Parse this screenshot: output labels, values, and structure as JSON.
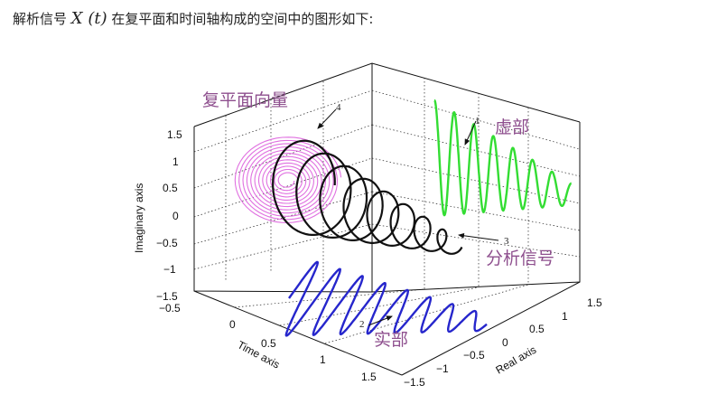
{
  "caption": {
    "prefix": "解析信号",
    "math": "X (t)",
    "suffix": "在复平面和时间轴构成的空间中的图形如下:"
  },
  "figure": {
    "axes": {
      "imag_label": "Imaginary axis",
      "time_label": "Time axis",
      "real_label": "Real axis",
      "imag_ticks": [
        "1.5",
        "1",
        "0.5",
        "0",
        "−0.5",
        "−1",
        "−1.5"
      ],
      "time_ticks": [
        "−0.5",
        "0",
        "0.5",
        "1",
        "1.5"
      ],
      "real_ticks": [
        "−1.5",
        "−1",
        "−0.5",
        "0",
        "0.5",
        "1",
        "1.5"
      ]
    },
    "annotations": {
      "phasor": "复平面向量",
      "imag_part": "虚部",
      "analytic": "分析信号",
      "real_part": "实部",
      "n2": "2",
      "n3": "3",
      "n4": "4",
      "n1": "1"
    },
    "colors": {
      "phasor": "#e070e0",
      "imag_part": "#33dd33",
      "analytic": "#111111",
      "real_part": "#2626cc",
      "label": "#8e4f8e"
    }
  }
}
